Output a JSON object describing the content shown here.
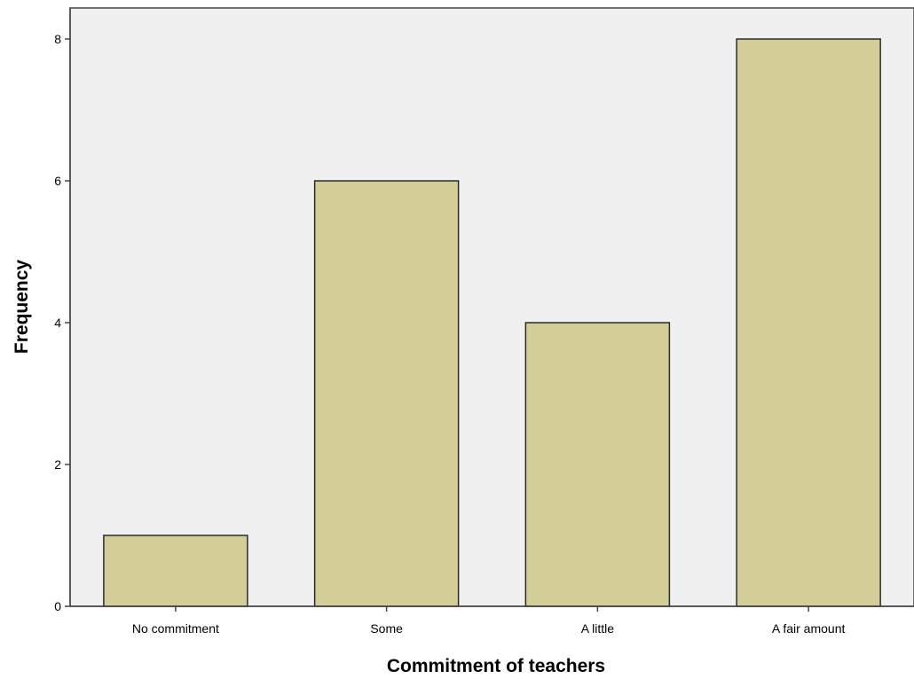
{
  "chart_data": {
    "type": "bar",
    "categories": [
      "No commitment",
      "Some",
      "A little",
      "A fair amount"
    ],
    "values": [
      1,
      6,
      4,
      8
    ],
    "xlabel": "Commitment of teachers",
    "ylabel": "Frequency",
    "ylim": [
      0,
      8.5
    ],
    "yticks": [
      0,
      2,
      4,
      6,
      8
    ],
    "grid": false,
    "legend": "none",
    "colors": {
      "plot_background": "#f0f0f0",
      "bar_fill": "#d3ce97",
      "bar_stroke": "#2b2b2b",
      "axis": "#444444"
    }
  }
}
